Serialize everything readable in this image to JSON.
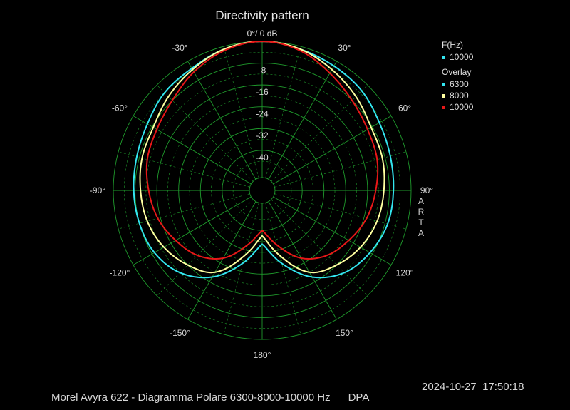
{
  "chart_data": {
    "type": "polar",
    "title": "Directivity pattern",
    "zero_label": "0°/ 0 dB",
    "radial_unit": "dB",
    "radial_range": [
      -50,
      0
    ],
    "radial_ticks": [
      -8,
      -16,
      -24,
      -32,
      -40
    ],
    "radial_tick_labels": [
      "-8",
      "-16",
      "-24",
      "-32",
      "-40"
    ],
    "angle_ticks": [
      -150,
      -120,
      -90,
      -60,
      -30,
      30,
      60,
      90,
      120,
      150,
      180
    ],
    "angle_tick_labels": [
      "-150°",
      "-120°",
      "-90°",
      "-60°",
      "-30°",
      "30°",
      "60°",
      "90°",
      "120°",
      "150°",
      "180°"
    ],
    "grid": true,
    "legend_position": "top-right",
    "angles_deg": [
      -180,
      -165,
      -150,
      -135,
      -120,
      -105,
      -90,
      -75,
      -60,
      -45,
      -30,
      -15,
      0,
      15,
      30,
      45,
      60,
      75,
      90,
      105,
      120,
      135,
      150,
      165,
      180
    ],
    "series": [
      {
        "name": "6300",
        "color": "#33e6f0",
        "values": [
          -35,
          -27,
          -18,
          -12,
          -9,
          -8,
          -7.5,
          -7,
          -6,
          -4,
          -3,
          -1,
          0,
          -1,
          -2,
          -3,
          -5,
          -6,
          -6.5,
          -7,
          -9,
          -12,
          -18,
          -27,
          -35
        ]
      },
      {
        "name": "8000",
        "color": "#ffffa0",
        "values": [
          -38,
          -30,
          -20,
          -16,
          -13,
          -11,
          -10,
          -9,
          -8.5,
          -6,
          -3.5,
          -1,
          0,
          -1,
          -3.5,
          -6,
          -8.5,
          -9,
          -10,
          -11,
          -13,
          -16,
          -20,
          -30,
          -38
        ]
      },
      {
        "name": "10000",
        "color": "#e81818",
        "values": [
          -40,
          -34,
          -26,
          -21,
          -18,
          -15,
          -13,
          -11,
          -10,
          -8,
          -4.5,
          -1.5,
          0,
          -1.5,
          -5,
          -8,
          -10,
          -11,
          -13,
          -15,
          -18,
          -21,
          -26,
          -34,
          -40
        ]
      }
    ]
  },
  "legend": {
    "fhz_header": "F(Hz)",
    "current_label": "10000",
    "current_color": "#33e6f0",
    "overlay_header": "Overlay",
    "items": [
      {
        "label": "6300",
        "color": "#33e6f0"
      },
      {
        "label": "8000",
        "color": "#ffffa0"
      },
      {
        "label": "10000",
        "color": "#e81818"
      }
    ]
  },
  "side_label": "ARTA",
  "footer": {
    "text": "Morel Avyra 622 - Diagramma Polare 6300-8000-10000 Hz      DPA",
    "timestamp": "2024-10-27  17:50:18"
  }
}
